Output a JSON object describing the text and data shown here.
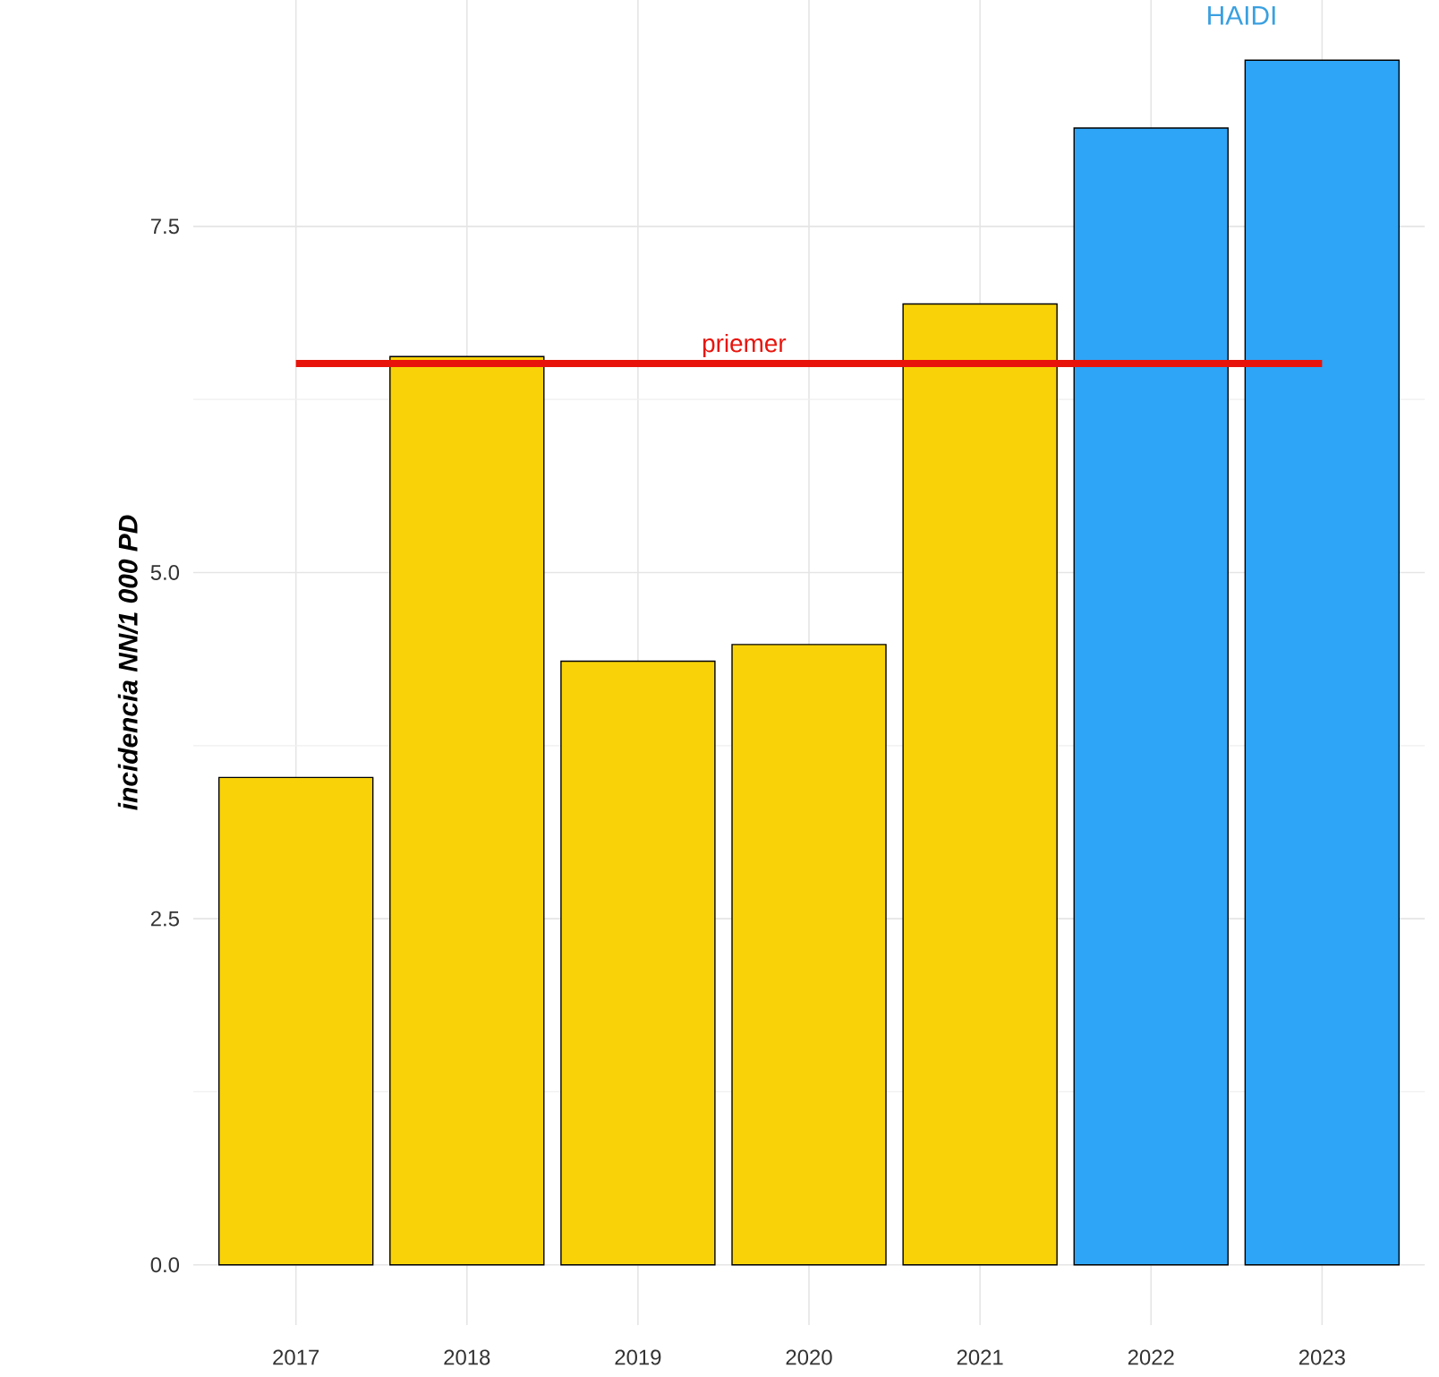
{
  "chart_data": {
    "type": "bar",
    "ylabel": "incidencia NN/1 000 PD",
    "categories": [
      "2017",
      "2018",
      "2019",
      "2020",
      "2021",
      "2022",
      "2023"
    ],
    "values": [
      3.52,
      6.56,
      4.36,
      4.48,
      6.94,
      8.21,
      8.7
    ],
    "colors": [
      "#f9d308",
      "#f9d308",
      "#f9d308",
      "#f9d308",
      "#f9d308",
      "#2ea5f7",
      "#2ea5f7"
    ],
    "ylim": [
      -0.435,
      9.135
    ],
    "yticks": [
      {
        "value": 0,
        "label": "0.0"
      },
      {
        "value": 2.5,
        "label": "2.5"
      },
      {
        "value": 5,
        "label": "5.0"
      },
      {
        "value": 7.5,
        "label": "7.5"
      }
    ],
    "grid": true,
    "ref_lines": [
      {
        "axis": "y",
        "value": 6.51,
        "label": "priemer",
        "color": "#e8140c"
      }
    ],
    "annotations": [
      "HAIDI"
    ]
  }
}
